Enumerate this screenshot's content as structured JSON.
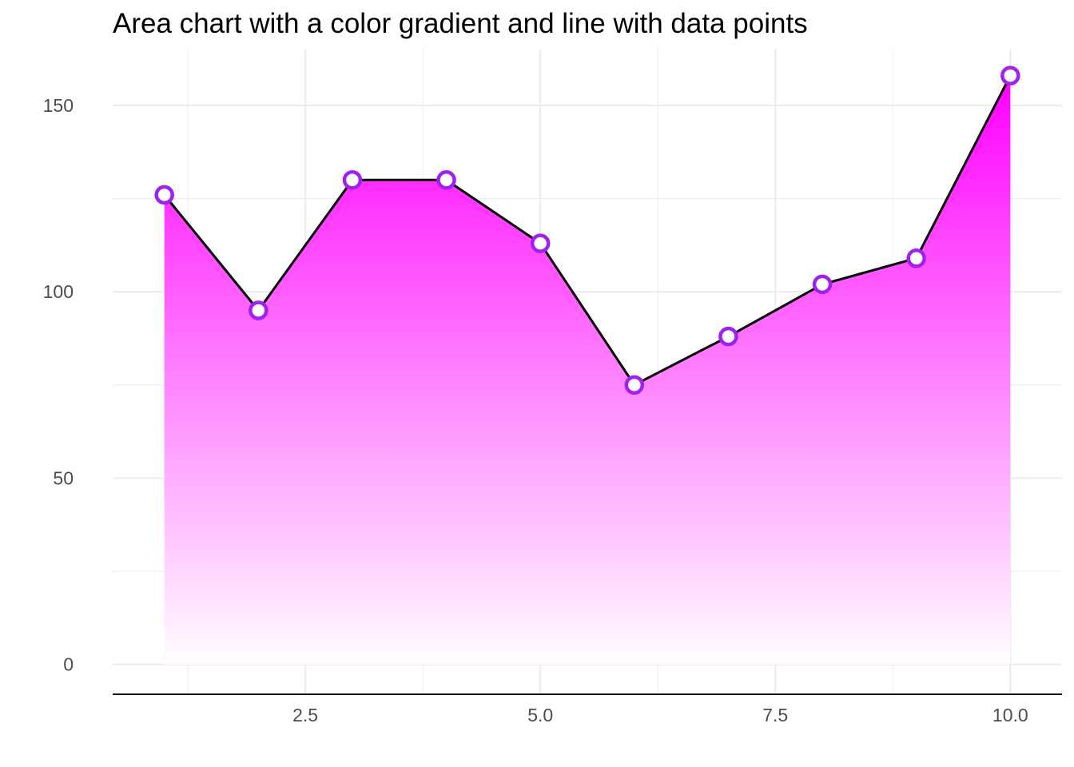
{
  "chart_data": {
    "type": "area",
    "title": "Area chart with a color gradient and line with data points",
    "xlabel": "",
    "ylabel": "",
    "x": [
      1,
      2,
      3,
      4,
      5,
      6,
      7,
      8,
      9,
      10
    ],
    "y": [
      126,
      95,
      130,
      130,
      113,
      75,
      88,
      102,
      109,
      158
    ],
    "xlim": [
      0.45,
      10.55
    ],
    "ylim": [
      -8,
      165
    ],
    "x_ticks": [
      2.5,
      5.0,
      7.5,
      10.0
    ],
    "x_tick_labels": [
      "2.5",
      "5.0",
      "7.5",
      "10.0"
    ],
    "y_ticks": [
      0,
      50,
      100,
      150
    ],
    "y_tick_labels": [
      "0",
      "50",
      "100",
      "150"
    ],
    "grid": true,
    "legend": "none",
    "colors": {
      "fill_top": "#ff00ff",
      "fill_bottom": "#ffffff",
      "line": "#000000",
      "marker_edge": "#a020f0",
      "marker_fill": "#ffffff",
      "grid": "#ebebeb",
      "axis": "#000000",
      "tick_text": "#4d4d4d"
    }
  }
}
